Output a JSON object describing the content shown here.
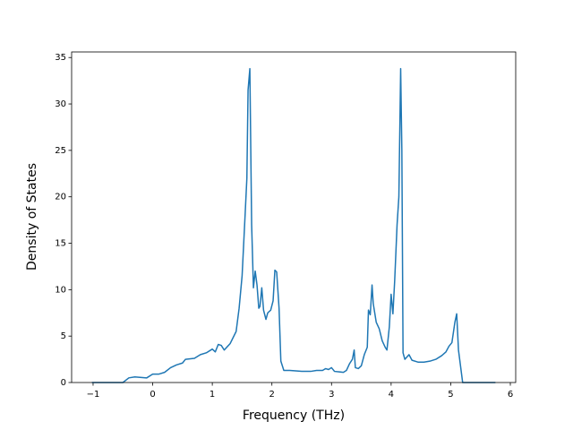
{
  "chart_data": {
    "type": "line",
    "x_label": "Frequency (THz)",
    "y_label": "Density of States",
    "x": [
      -1.02,
      -0.5,
      -0.4,
      -0.3,
      -0.1,
      0,
      0.1,
      0.2,
      0.3,
      0.4,
      0.5,
      0.55,
      0.7,
      0.8,
      0.9,
      1.0,
      1.05,
      1.1,
      1.15,
      1.2,
      1.3,
      1.4,
      1.45,
      1.5,
      1.55,
      1.58,
      1.6,
      1.63,
      1.66,
      1.69,
      1.72,
      1.75,
      1.78,
      1.8,
      1.83,
      1.86,
      1.9,
      1.93,
      1.98,
      2.02,
      2.05,
      2.08,
      2.12,
      2.15,
      2.2,
      2.3,
      2.5,
      2.65,
      2.75,
      2.85,
      2.9,
      2.95,
      3.0,
      3.05,
      3.2,
      3.25,
      3.3,
      3.35,
      3.38,
      3.4,
      3.45,
      3.5,
      3.55,
      3.6,
      3.62,
      3.65,
      3.68,
      3.7,
      3.75,
      3.8,
      3.85,
      3.9,
      3.93,
      3.97,
      4.0,
      4.03,
      4.06,
      4.1,
      4.13,
      4.16,
      4.18,
      4.2,
      4.23,
      4.3,
      4.35,
      4.45,
      4.55,
      4.65,
      4.75,
      4.85,
      4.92,
      4.97,
      5.02,
      5.07,
      5.1,
      5.13,
      5.2,
      5.3,
      5.75
    ],
    "series": [
      {
        "color": "#1f77b4",
        "values": [
          0,
          0,
          0.5,
          0.6,
          0.5,
          0.9,
          0.9,
          1.1,
          1.6,
          1.9,
          2.1,
          2.5,
          2.6,
          3.0,
          3.2,
          3.6,
          3.3,
          4.1,
          4.0,
          3.5,
          4.2,
          5.5,
          8,
          11.5,
          18,
          22,
          31.5,
          33.8,
          17,
          10.2,
          12,
          10.5,
          8,
          8.2,
          10.2,
          7.8,
          6.8,
          7.5,
          7.8,
          8.8,
          12.1,
          11.9,
          8,
          2.3,
          1.3,
          1.3,
          1.2,
          1.2,
          1.3,
          1.3,
          1.5,
          1.4,
          1.6,
          1.2,
          1.1,
          1.3,
          2.0,
          2.5,
          3.5,
          1.6,
          1.5,
          1.8,
          3.0,
          3.8,
          7.8,
          7.3,
          10.5,
          8.5,
          6.5,
          5.8,
          4.5,
          3.8,
          3.5,
          6,
          9.5,
          7.4,
          11,
          17,
          20,
          33.8,
          25,
          3.2,
          2.5,
          3.0,
          2.4,
          2.2,
          2.2,
          2.3,
          2.5,
          2.9,
          3.3,
          3.9,
          4.3,
          6.5,
          7.4,
          3.5,
          0,
          0,
          0
        ]
      }
    ],
    "xlim": [
      -1.36,
      6.09
    ],
    "ylim": [
      0,
      35.6
    ],
    "xticks": [
      {
        "value": -1,
        "label": "−1"
      },
      0,
      1,
      2,
      3,
      4,
      5,
      6
    ],
    "yticks": [
      0,
      5,
      10,
      15,
      20,
      25,
      30,
      35
    ]
  }
}
